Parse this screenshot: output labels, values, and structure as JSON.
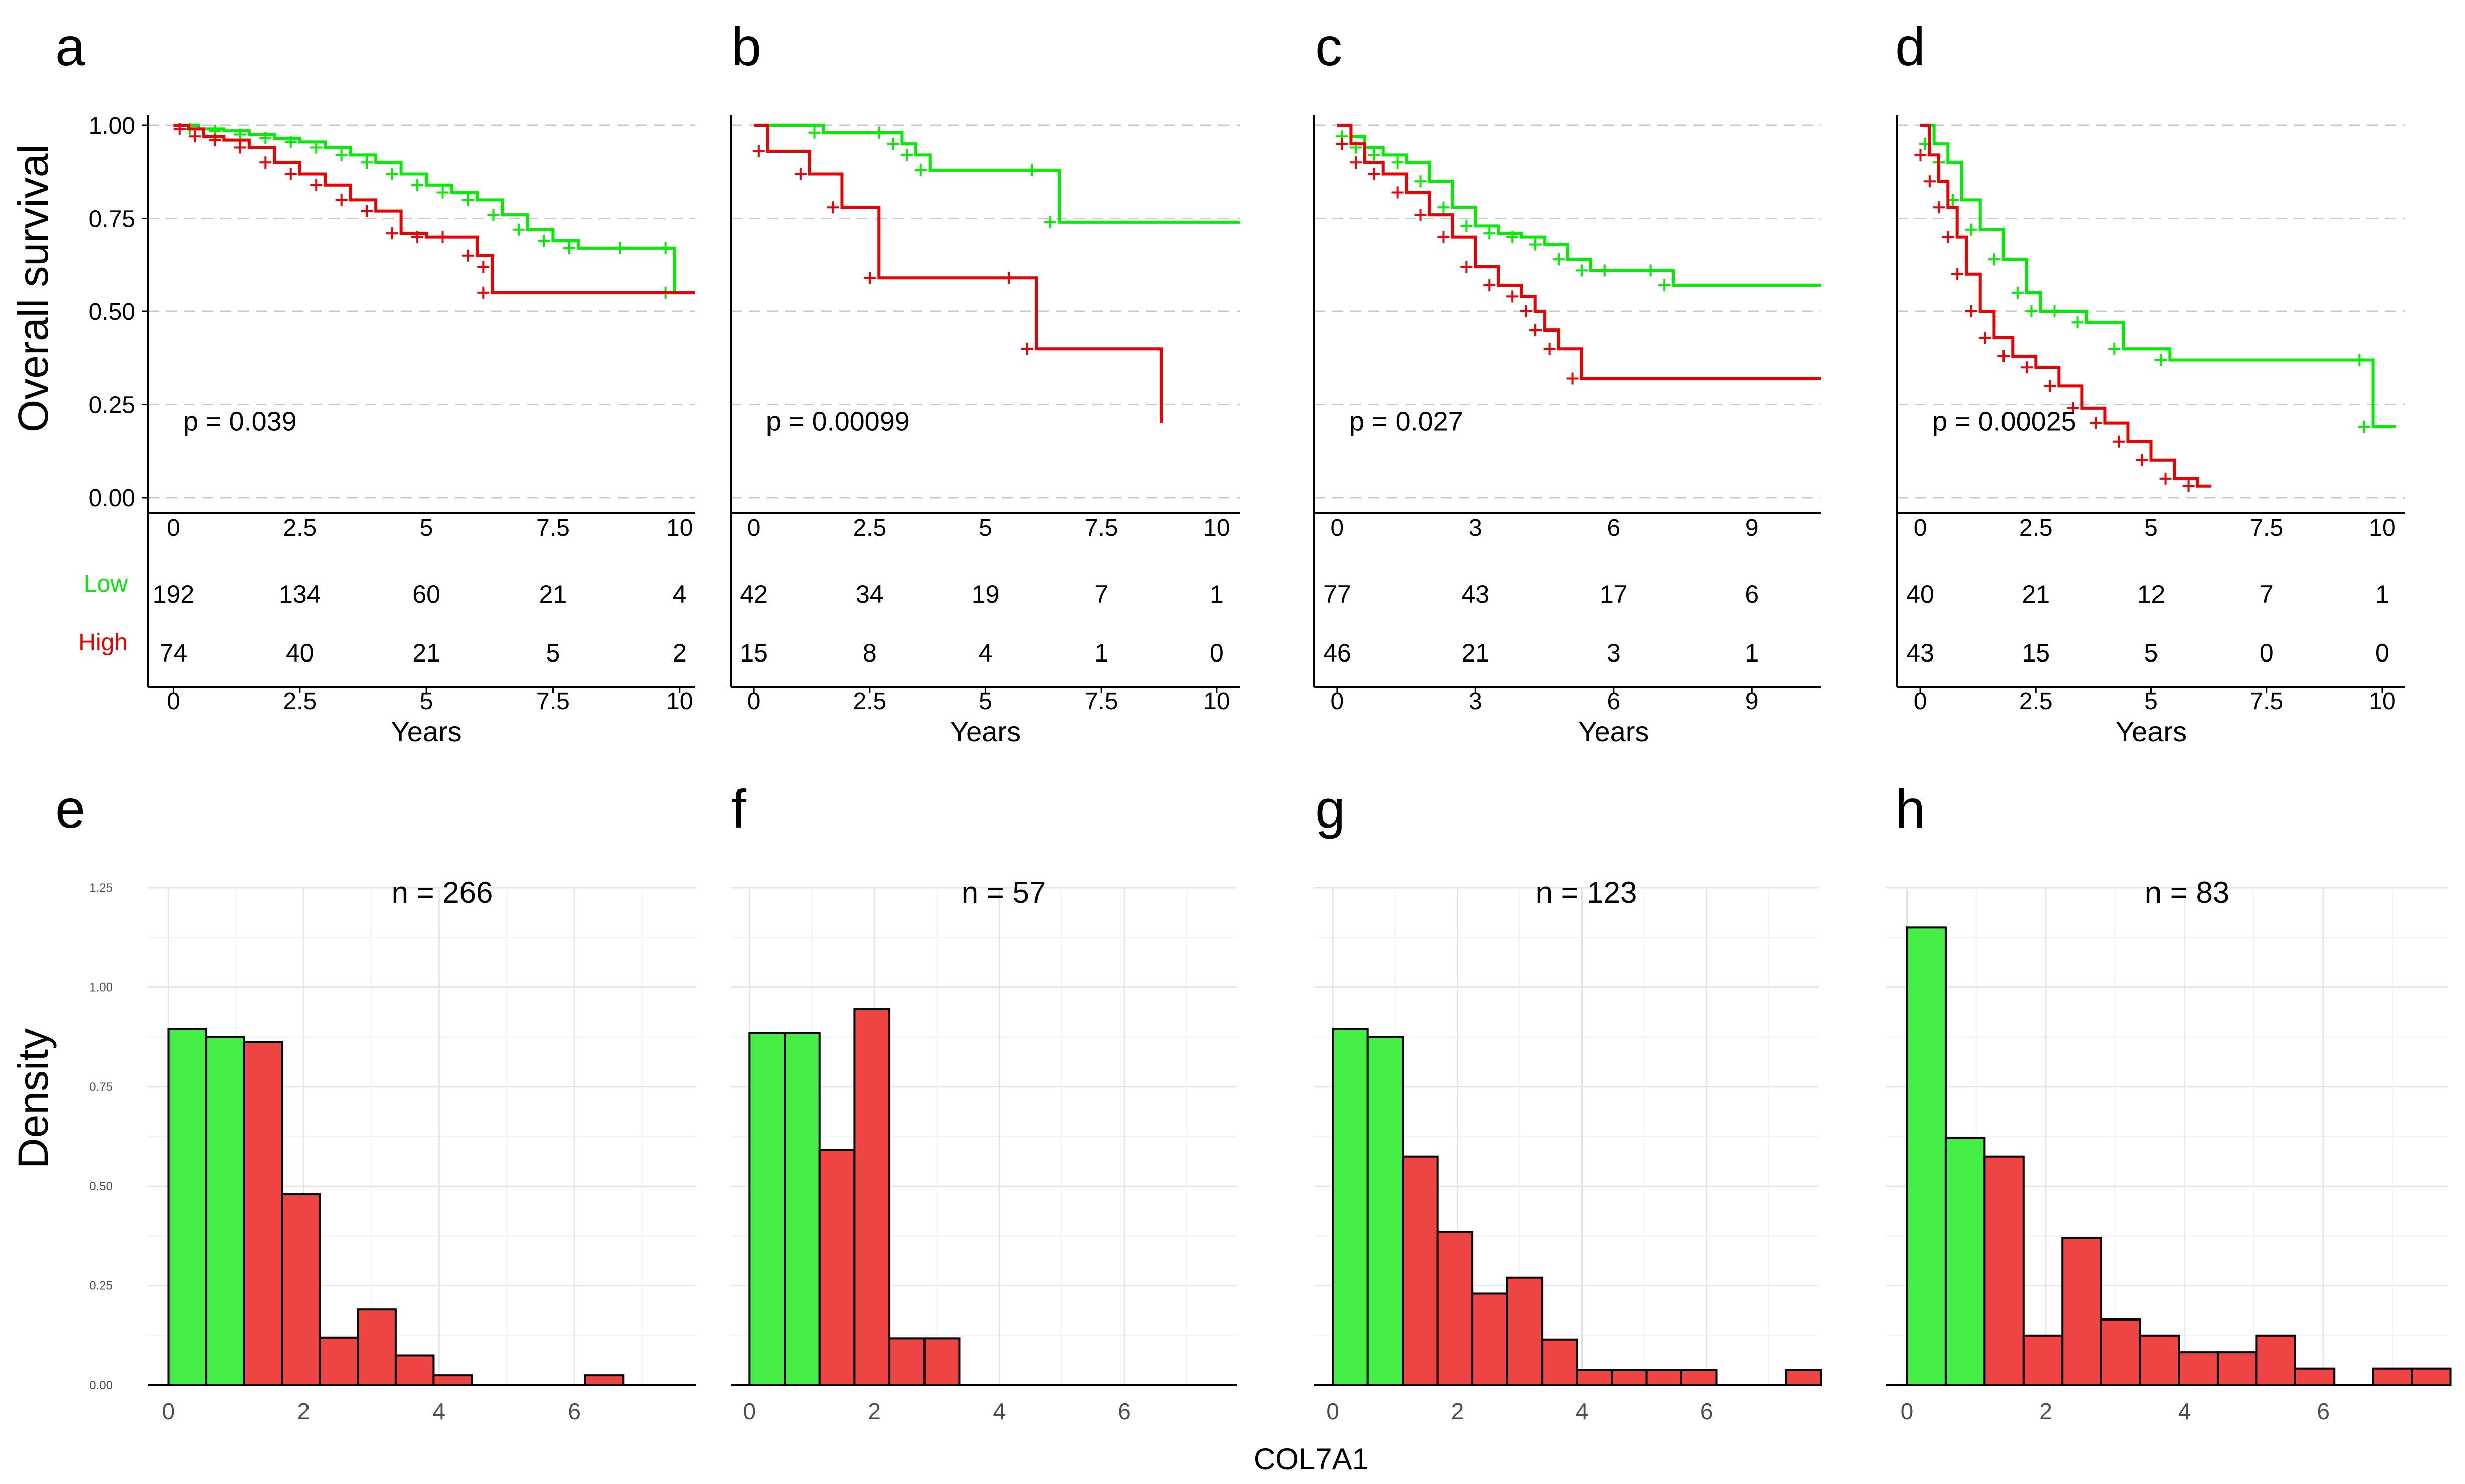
{
  "colors": {
    "low": "#00ee00",
    "high": "#ee0000",
    "hist_low": "#44ee44",
    "hist_high": "#ee4444",
    "grid": "#c8c8c8",
    "axis": "#000000",
    "tick_text": "#4d4d4d"
  },
  "labels": {
    "km_ylabel": "Overall survival",
    "km_xlabel": "Years",
    "risk_low": "Low",
    "risk_high": "High",
    "hist_ylabel": "Density",
    "hist_xlabel": "COL7A1"
  },
  "chart_data": [
    {
      "panel": "a",
      "type": "line",
      "title": "a",
      "xlabel": "Years",
      "ylabel": "Overall survival",
      "xlim": [
        -0.5,
        10.3
      ],
      "ylim": [
        0,
        1
      ],
      "xticks": [
        0,
        2.5,
        5,
        7.5,
        10
      ],
      "xtick_labels": [
        "0",
        "2.5",
        "5",
        "7.5",
        "10"
      ],
      "yticks": [
        0,
        0.25,
        0.5,
        0.75,
        1
      ],
      "ytick_labels": [
        "0.00",
        "0.25",
        "0.50",
        "0.75",
        "1.00"
      ],
      "pvalue": "p = 0.039",
      "series": [
        {
          "name": "Low",
          "x": [
            0,
            0.5,
            1,
            1.5,
            2,
            2.5,
            3,
            3.5,
            4,
            4.5,
            5,
            5.5,
            6,
            6.5,
            7,
            7.5,
            8,
            9,
            9.9,
            9.9,
            10.3
          ],
          "y": [
            1,
            0.99,
            0.985,
            0.975,
            0.965,
            0.955,
            0.94,
            0.92,
            0.9,
            0.87,
            0.84,
            0.82,
            0.8,
            0.76,
            0.72,
            0.69,
            0.67,
            0.67,
            0.67,
            0.55,
            0.55
          ]
        },
        {
          "name": "High",
          "x": [
            0,
            0.3,
            0.6,
            1,
            1.5,
            2,
            2.5,
            3,
            3.5,
            4,
            4.5,
            5,
            5.5,
            6,
            6.3,
            6.3,
            10.3
          ],
          "y": [
            1,
            0.99,
            0.97,
            0.96,
            0.94,
            0.9,
            0.87,
            0.84,
            0.8,
            0.77,
            0.71,
            0.7,
            0.7,
            0.65,
            0.62,
            0.55,
            0.55
          ]
        }
      ],
      "risk_table": {
        "times": [
          "0",
          "2.5",
          "5",
          "7.5",
          "10"
        ],
        "Low": [
          "192",
          "134",
          "60",
          "21",
          "4"
        ],
        "High": [
          "74",
          "40",
          "21",
          "5",
          "2"
        ]
      }
    },
    {
      "panel": "b",
      "type": "line",
      "title": "b",
      "xlabel": "Years",
      "ylabel": "",
      "xlim": [
        -0.5,
        10.5
      ],
      "ylim": [
        0,
        1
      ],
      "xticks": [
        0,
        2.5,
        5,
        7.5,
        10
      ],
      "xtick_labels": [
        "0",
        "2.5",
        "5",
        "7.5",
        "10"
      ],
      "pvalue": "p = 0.00099",
      "series": [
        {
          "name": "Low",
          "x": [
            0,
            1.5,
            2.9,
            3.2,
            3.5,
            3.8,
            6.2,
            6.6,
            10.5
          ],
          "y": [
            1,
            0.98,
            0.98,
            0.95,
            0.92,
            0.88,
            0.88,
            0.74,
            0.74
          ]
        },
        {
          "name": "High",
          "x": [
            0,
            0.3,
            1.2,
            1.9,
            2.7,
            5.7,
            6.1,
            8.8
          ],
          "y": [
            1,
            0.93,
            0.87,
            0.78,
            0.59,
            0.59,
            0.4,
            0.2
          ]
        }
      ],
      "risk_table": {
        "times": [
          "0",
          "2.5",
          "5",
          "7.5",
          "10"
        ],
        "Low": [
          "42",
          "34",
          "19",
          "7",
          "1"
        ],
        "High": [
          "15",
          "8",
          "4",
          "1",
          "0"
        ]
      }
    },
    {
      "panel": "c",
      "type": "line",
      "title": "c",
      "xlabel": "Years",
      "ylabel": "",
      "xlim": [
        -0.5,
        10.5
      ],
      "ylim": [
        0,
        1
      ],
      "xticks": [
        0,
        3,
        6,
        9
      ],
      "xtick_labels": [
        "0",
        "3",
        "6",
        "9"
      ],
      "pvalue": "p = 0.027",
      "series": [
        {
          "name": "Low",
          "x": [
            0,
            0.3,
            0.6,
            1,
            1.5,
            2,
            2.5,
            3,
            3.5,
            4,
            4.5,
            5,
            5.5,
            6,
            7,
            7.3,
            10.5
          ],
          "y": [
            1,
            0.97,
            0.94,
            0.92,
            0.9,
            0.85,
            0.78,
            0.73,
            0.71,
            0.7,
            0.68,
            0.64,
            0.61,
            0.61,
            0.61,
            0.57,
            0.57
          ]
        },
        {
          "name": "High",
          "x": [
            0,
            0.3,
            0.6,
            1,
            1.5,
            2,
            2.5,
            3,
            3.5,
            4,
            4.3,
            4.5,
            4.8,
            5.3,
            10.5
          ],
          "y": [
            1,
            0.95,
            0.9,
            0.87,
            0.82,
            0.76,
            0.7,
            0.62,
            0.57,
            0.54,
            0.5,
            0.45,
            0.4,
            0.32,
            0.32
          ]
        }
      ],
      "risk_table": {
        "times": [
          "0",
          "3",
          "6",
          "9"
        ],
        "Low": [
          "77",
          "43",
          "17",
          "6"
        ],
        "High": [
          "46",
          "21",
          "3",
          "1"
        ]
      }
    },
    {
      "panel": "d",
      "type": "line",
      "title": "d",
      "xlabel": "Years",
      "ylabel": "",
      "xlim": [
        -0.5,
        10.5
      ],
      "ylim": [
        0,
        1
      ],
      "xticks": [
        0,
        2.5,
        5,
        7.5,
        10
      ],
      "xtick_labels": [
        "0",
        "2.5",
        "5",
        "7.5",
        "10"
      ],
      "pvalue": "p = 0.00025",
      "series": [
        {
          "name": "Low",
          "x": [
            0,
            0.3,
            0.6,
            0.9,
            1.3,
            1.8,
            2.3,
            2.6,
            3.1,
            3.6,
            4.4,
            5.4,
            9.7,
            9.8,
            10.3
          ],
          "y": [
            1,
            0.95,
            0.9,
            0.8,
            0.72,
            0.64,
            0.55,
            0.5,
            0.5,
            0.47,
            0.4,
            0.37,
            0.37,
            0.19,
            0.19
          ]
        },
        {
          "name": "High",
          "x": [
            0,
            0.2,
            0.4,
            0.6,
            0.8,
            1,
            1.3,
            1.6,
            2,
            2.5,
            3,
            3.5,
            4,
            4.5,
            5,
            5.5,
            6,
            6.3
          ],
          "y": [
            1,
            0.92,
            0.85,
            0.78,
            0.7,
            0.6,
            0.5,
            0.43,
            0.38,
            0.35,
            0.3,
            0.24,
            0.2,
            0.15,
            0.1,
            0.05,
            0.03,
            0.03
          ]
        }
      ],
      "risk_table": {
        "times": [
          "0",
          "2.5",
          "5",
          "7.5",
          "10"
        ],
        "Low": [
          "40",
          "21",
          "12",
          "7",
          "1"
        ],
        "High": [
          "43",
          "15",
          "5",
          "0",
          "0"
        ]
      }
    },
    {
      "panel": "e",
      "type": "bar",
      "title": "e",
      "annotation": "n = 266",
      "xlabel": "",
      "ylabel": "Density",
      "xlim": [
        -0.3,
        7.8
      ],
      "ylim": [
        0,
        1.25
      ],
      "xticks": [
        0,
        2,
        4,
        6
      ],
      "xtick_labels": [
        "0",
        "2",
        "4",
        "6"
      ],
      "yticks": [
        0,
        0.25,
        0.5,
        0.75,
        1,
        1.25
      ],
      "ytick_labels": [
        "0.00",
        "0.25",
        "0.50",
        "0.75",
        "1.00",
        "1.25"
      ],
      "bin_width": 0.56,
      "bins": [
        {
          "x0": 0,
          "v": 0.895,
          "g": "Low"
        },
        {
          "x0": 0.56,
          "v": 0.875,
          "g": "Low"
        },
        {
          "x0": 1.12,
          "v": 0.862,
          "g": "High"
        },
        {
          "x0": 1.68,
          "v": 0.48,
          "g": "High"
        },
        {
          "x0": 2.24,
          "v": 0.12,
          "g": "High"
        },
        {
          "x0": 2.8,
          "v": 0.19,
          "g": "High"
        },
        {
          "x0": 3.36,
          "v": 0.075,
          "g": "High"
        },
        {
          "x0": 3.92,
          "v": 0.025,
          "g": "High"
        },
        {
          "x0": 6.16,
          "v": 0.025,
          "g": "High"
        }
      ]
    },
    {
      "panel": "f",
      "type": "bar",
      "title": "f",
      "annotation": "n = 57",
      "xlabel": "",
      "ylabel": "",
      "xlim": [
        -0.3,
        7.8
      ],
      "ylim": [
        0,
        1.25
      ],
      "xticks": [
        0,
        2,
        4,
        6
      ],
      "xtick_labels": [
        "0",
        "2",
        "4",
        "6"
      ],
      "bin_width": 0.56,
      "bins": [
        {
          "x0": 0,
          "v": 0.885,
          "g": "Low"
        },
        {
          "x0": 0.56,
          "v": 0.885,
          "g": "Low"
        },
        {
          "x0": 1.12,
          "v": 0.59,
          "g": "High"
        },
        {
          "x0": 1.68,
          "v": 0.945,
          "g": "High"
        },
        {
          "x0": 2.24,
          "v": 0.118,
          "g": "High"
        },
        {
          "x0": 2.8,
          "v": 0.118,
          "g": "High"
        }
      ]
    },
    {
      "panel": "g",
      "type": "bar",
      "title": "g",
      "annotation": "n = 123",
      "xlabel": "COL7A1",
      "ylabel": "",
      "xlim": [
        -0.3,
        7.8
      ],
      "ylim": [
        0,
        1.25
      ],
      "xticks": [
        0,
        2,
        4,
        6
      ],
      "xtick_labels": [
        "0",
        "2",
        "4",
        "6"
      ],
      "bin_width": 0.56,
      "bins": [
        {
          "x0": 0,
          "v": 0.895,
          "g": "Low"
        },
        {
          "x0": 0.56,
          "v": 0.875,
          "g": "Low"
        },
        {
          "x0": 1.12,
          "v": 0.575,
          "g": "High"
        },
        {
          "x0": 1.68,
          "v": 0.385,
          "g": "High"
        },
        {
          "x0": 2.24,
          "v": 0.23,
          "g": "High"
        },
        {
          "x0": 2.8,
          "v": 0.27,
          "g": "High"
        },
        {
          "x0": 3.36,
          "v": 0.115,
          "g": "High"
        },
        {
          "x0": 3.92,
          "v": 0.038,
          "g": "High"
        },
        {
          "x0": 4.48,
          "v": 0.038,
          "g": "High"
        },
        {
          "x0": 5.04,
          "v": 0.038,
          "g": "High"
        },
        {
          "x0": 5.6,
          "v": 0.038,
          "g": "High"
        },
        {
          "x0": 7.28,
          "v": 0.038,
          "g": "High"
        }
      ]
    },
    {
      "panel": "h",
      "type": "bar",
      "title": "h",
      "annotation": "n = 83",
      "xlabel": "",
      "ylabel": "",
      "xlim": [
        -0.3,
        7.8
      ],
      "ylim": [
        0,
        1.25
      ],
      "xticks": [
        0,
        2,
        4,
        6
      ],
      "xtick_labels": [
        "0",
        "2",
        "4",
        "6"
      ],
      "bin_width": 0.56,
      "bins": [
        {
          "x0": 0,
          "v": 1.15,
          "g": "Low"
        },
        {
          "x0": 0.56,
          "v": 0.62,
          "g": "Low"
        },
        {
          "x0": 1.12,
          "v": 0.575,
          "g": "High"
        },
        {
          "x0": 1.68,
          "v": 0.125,
          "g": "High"
        },
        {
          "x0": 2.24,
          "v": 0.37,
          "g": "High"
        },
        {
          "x0": 2.8,
          "v": 0.165,
          "g": "High"
        },
        {
          "x0": 3.36,
          "v": 0.125,
          "g": "High"
        },
        {
          "x0": 3.92,
          "v": 0.083,
          "g": "High"
        },
        {
          "x0": 4.48,
          "v": 0.083,
          "g": "High"
        },
        {
          "x0": 5.04,
          "v": 0.125,
          "g": "High"
        },
        {
          "x0": 5.6,
          "v": 0.042,
          "g": "High"
        },
        {
          "x0": 6.72,
          "v": 0.042,
          "g": "High"
        },
        {
          "x0": 7.28,
          "v": 0.042,
          "g": "High"
        }
      ]
    }
  ]
}
